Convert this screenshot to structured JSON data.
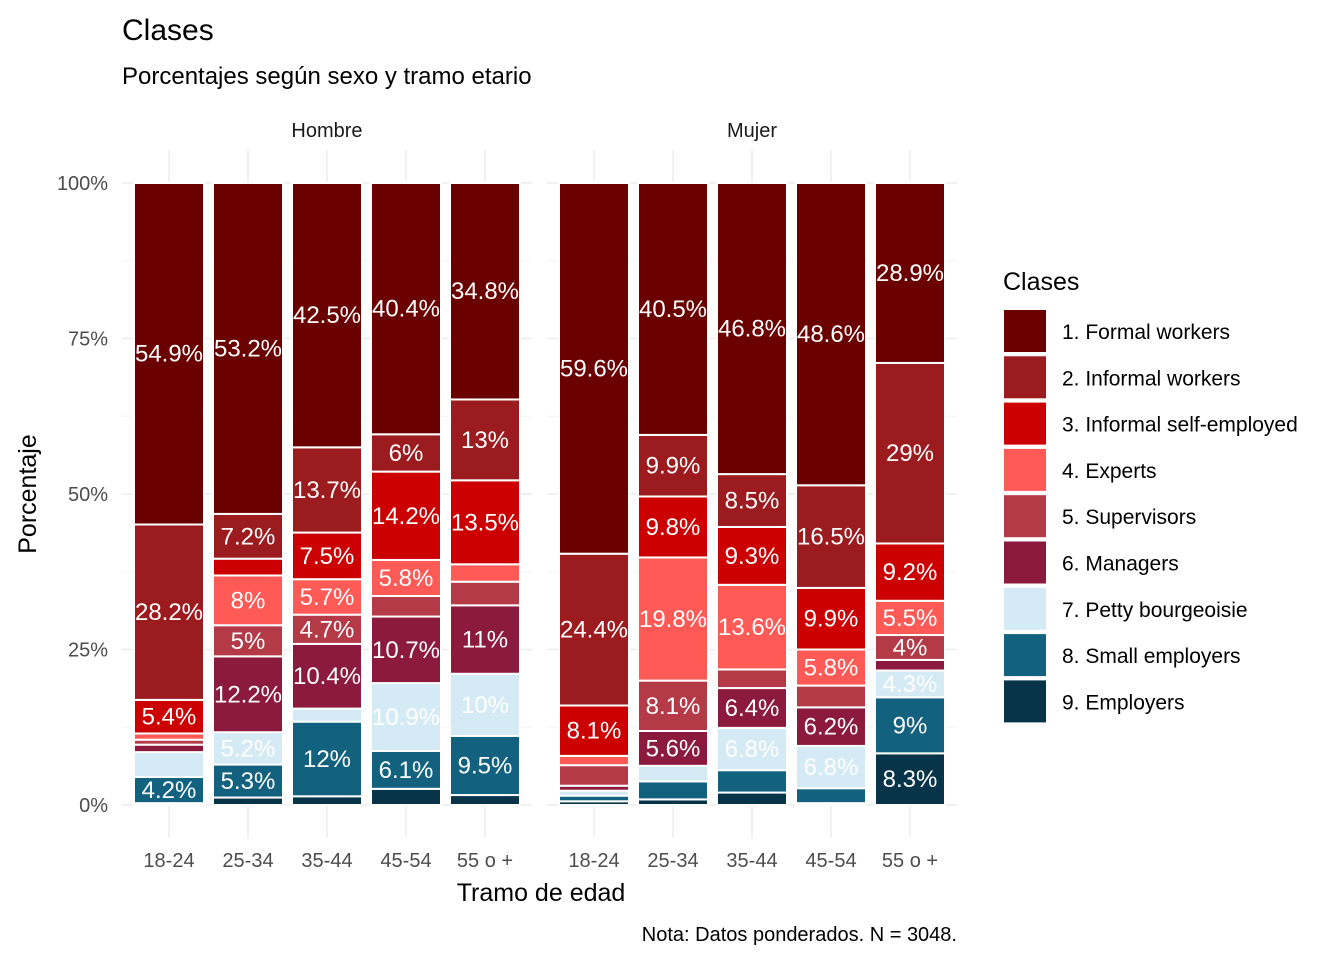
{
  "chart_data": {
    "type": "bar",
    "stacked": true,
    "title": "Clases",
    "subtitle": "Porcentajes según sexo y tramo etario",
    "xlabel": "Tramo de edad",
    "ylabel": "Porcentaje",
    "caption": "Nota: Datos ponderados. N = 3048.",
    "ylim": [
      0,
      100
    ],
    "y_ticks": [
      "0%",
      "25%",
      "50%",
      "75%",
      "100%"
    ],
    "grid": true,
    "legend": {
      "title": "Clases",
      "position": "right"
    },
    "categories": [
      "18-24",
      "25-34",
      "35-44",
      "45-54",
      "55 o +"
    ],
    "series": [
      {
        "name": "1. Formal workers",
        "color": "#6B0000"
      },
      {
        "name": "2. Informal workers",
        "color": "#9B1B1E"
      },
      {
        "name": "3. Informal self-employed",
        "color": "#CC0000"
      },
      {
        "name": "4. Experts",
        "color": "#FF5A55"
      },
      {
        "name": "5. Supervisors",
        "color": "#B43A48"
      },
      {
        "name": "6. Managers",
        "color": "#8B1A3E"
      },
      {
        "name": "7. Petty bourgeoisie",
        "color": "#D4EAF4"
      },
      {
        "name": "8. Small employers",
        "color": "#12627F"
      },
      {
        "name": "9. Employers",
        "color": "#08344A"
      }
    ],
    "facets": [
      {
        "name": "Hombre",
        "values": [
          [
            54.9,
            28.2,
            5.4,
            1.0,
            0.8,
            1.2,
            4.0,
            4.2,
            0.3
          ],
          [
            53.2,
            7.2,
            2.7,
            8.0,
            5.0,
            12.2,
            5.2,
            5.3,
            1.2
          ],
          [
            42.5,
            13.7,
            7.5,
            5.7,
            4.7,
            10.4,
            2.1,
            12.0,
            1.4
          ],
          [
            40.4,
            6.0,
            14.2,
            5.8,
            3.3,
            10.7,
            10.9,
            6.1,
            2.6
          ],
          [
            34.8,
            13.0,
            13.5,
            2.8,
            3.8,
            11.0,
            10.0,
            9.5,
            1.6
          ]
        ],
        "labels": [
          [
            "54.9%",
            "28.2%",
            "5.4%",
            "",
            "",
            "",
            "",
            "4.2%",
            ""
          ],
          [
            "53.2%",
            "7.2%",
            "",
            "8%",
            "5%",
            "12.2%",
            "5.2%",
            "5.3%",
            ""
          ],
          [
            "42.5%",
            "13.7%",
            "7.5%",
            "5.7%",
            "4.7%",
            "10.4%",
            "",
            "12%",
            ""
          ],
          [
            "40.4%",
            "6%",
            "14.2%",
            "5.8%",
            "",
            "10.7%",
            "10.9%",
            "6.1%",
            ""
          ],
          [
            "34.8%",
            "13%",
            "13.5%",
            "",
            "",
            "11%",
            "10%",
            "9.5%",
            ""
          ]
        ]
      },
      {
        "name": "Mujer",
        "values": [
          [
            59.6,
            24.4,
            8.1,
            1.5,
            3.3,
            0.8,
            0.8,
            0.9,
            0.6
          ],
          [
            40.5,
            9.9,
            9.8,
            19.8,
            8.1,
            5.6,
            2.5,
            2.9,
            0.9
          ],
          [
            46.8,
            8.5,
            9.3,
            13.6,
            3.0,
            6.4,
            6.8,
            3.6,
            2.0
          ],
          [
            48.6,
            16.5,
            9.9,
            5.8,
            3.5,
            6.2,
            6.8,
            2.4,
            0.3
          ],
          [
            28.9,
            29.0,
            9.2,
            5.5,
            4.0,
            1.7,
            4.3,
            9.0,
            8.3
          ]
        ],
        "labels": [
          [
            "59.6%",
            "24.4%",
            "8.1%",
            "",
            "",
            "",
            "",
            "",
            ""
          ],
          [
            "40.5%",
            "9.9%",
            "9.8%",
            "19.8%",
            "8.1%",
            "5.6%",
            "",
            "",
            ""
          ],
          [
            "46.8%",
            "8.5%",
            "9.3%",
            "13.6%",
            "",
            "6.4%",
            "6.8%",
            "",
            ""
          ],
          [
            "48.6%",
            "16.5%",
            "9.9%",
            "5.8%",
            "",
            "6.2%",
            "6.8%",
            "",
            ""
          ],
          [
            "28.9%",
            "29%",
            "9.2%",
            "5.5%",
            "4%",
            "",
            "4.3%",
            "9%",
            "8.3%"
          ]
        ]
      }
    ]
  }
}
